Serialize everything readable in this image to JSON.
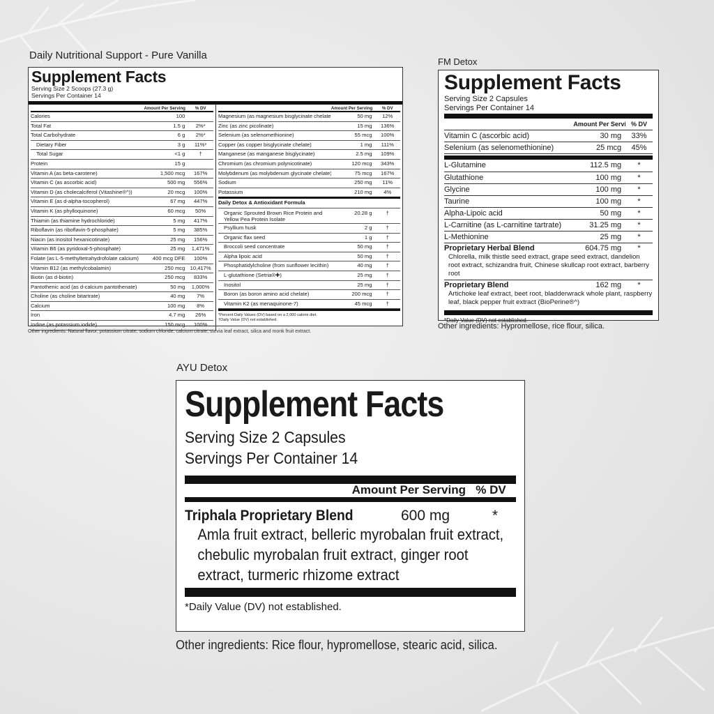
{
  "panels": {
    "daily": {
      "label": "Daily Nutritional Support - Pure Vanilla",
      "title": "Supplement Facts",
      "serving_size": "Serving Size 2 Scoops (27.3 g)",
      "servings_per_container": "Servings Per Container 14",
      "header_amount": "Amount Per Serving",
      "header_dv": "% DV",
      "left_rows": [
        {
          "name": "Calories",
          "amount": "100",
          "dv": ""
        },
        {
          "name": "Total Fat",
          "amount": "1.5 g",
          "dv": "2%*"
        },
        {
          "name": "Total Carbohydrate",
          "amount": "6 g",
          "dv": "2%*"
        },
        {
          "name": "Dietary Fiber",
          "amount": "3 g",
          "dv": "11%*",
          "indent": true
        },
        {
          "name": "Total Sugar",
          "amount": "<1 g",
          "dv": "†",
          "indent": true
        },
        {
          "name": "Protein",
          "amount": "15 g",
          "dv": ""
        },
        {
          "name": "Vitamin A (as beta-carotene)",
          "amount": "1,500 mcg",
          "dv": "167%"
        },
        {
          "name": "Vitamin C (as ascorbic acid)",
          "amount": "500 mg",
          "dv": "556%"
        },
        {
          "name": "Vitamin D (as cholecalciferol (Vitashine®^))",
          "amount": "20 mcg",
          "dv": "100%"
        },
        {
          "name": "Vitamin E (as d-alpha-tocopherol)",
          "amount": "67 mg",
          "dv": "447%"
        },
        {
          "name": "Vitamin K (as phylloquinone)",
          "amount": "60 mcg",
          "dv": "50%"
        },
        {
          "name": "Thiamin (as thiamine hydrochloride)",
          "amount": "5 mg",
          "dv": "417%"
        },
        {
          "name": "Riboflavin (as riboflavin-5-phosphate)",
          "amount": "5 mg",
          "dv": "385%"
        },
        {
          "name": "Niacin (as inositol hexanicotinate)",
          "amount": "25 mg",
          "dv": "156%"
        },
        {
          "name": "Vitamin B6 (as pyridoxal-5-phosphate)",
          "amount": "25 mg",
          "dv": "1,471%"
        },
        {
          "name": "Folate (as L-5-methyltetrahydrofolate calcium)",
          "amount": "400 mcg DFE",
          "dv": "100%"
        },
        {
          "name": "Vitamin B12 (as methylcobalamin)",
          "amount": "250 mcg",
          "dv": "10,417%"
        },
        {
          "name": "Biotin (as d-biotin)",
          "amount": "250 mcg",
          "dv": "833%"
        },
        {
          "name": "Pantothenic acid (as d-calcium pantothenate)",
          "amount": "50 mg",
          "dv": "1,000%"
        },
        {
          "name": "Choline (as choline bitartrate)",
          "amount": "40 mg",
          "dv": "7%"
        },
        {
          "name": "Calcium",
          "amount": "100 mg",
          "dv": "8%"
        },
        {
          "name": "Iron",
          "amount": "4.7 mg",
          "dv": "26%"
        },
        {
          "name": "Iodine (as potassium iodide)",
          "amount": "150 mcg",
          "dv": "100%"
        }
      ],
      "right_rows": [
        {
          "name": "Magnesium (as magnesium bisglycinate chelate)",
          "amount": "50 mg",
          "dv": "12%"
        },
        {
          "name": "Zinc (as zinc picolinate)",
          "amount": "15 mg",
          "dv": "136%"
        },
        {
          "name": "Selenium (as selenomethionine)",
          "amount": "55 mcg",
          "dv": "100%"
        },
        {
          "name": "Copper (as copper bisglycinate chelate)",
          "amount": "1 mg",
          "dv": "111%"
        },
        {
          "name": "Manganese (as manganese bisglycinate)",
          "amount": "2.5 mg",
          "dv": "109%"
        },
        {
          "name": "Chromium (as chromium polynicotinate)",
          "amount": "120 mcg",
          "dv": "343%"
        },
        {
          "name": "Molybdenum (as molybdenum glycinate chelate)",
          "amount": "75 mcg",
          "dv": "167%"
        },
        {
          "name": "Sodium",
          "amount": "250 mg",
          "dv": "11%"
        },
        {
          "name": "Potassium",
          "amount": "210 mg",
          "dv": "4%"
        }
      ],
      "formula_title": "Daily Detox & Antioxidant Formula",
      "formula_rows": [
        {
          "name": "Organic Sprouted Brown Rice Protein and Yellow Pea Protein Isolate",
          "amount": "20.28 g",
          "dv": "†"
        },
        {
          "name": "Psyllium husk",
          "amount": "2 g",
          "dv": "†"
        },
        {
          "name": "Organic flax seed",
          "amount": "1 g",
          "dv": "†"
        },
        {
          "name": "Broccoli seed concentrate",
          "amount": "50 mg",
          "dv": "†"
        },
        {
          "name": "Alpha lipoic acid",
          "amount": "50 mg",
          "dv": "†"
        },
        {
          "name": "Phosphatidylcholine (from sunflower lecithin)",
          "amount": "40 mg",
          "dv": "†"
        },
        {
          "name": "L-glutathione (Setria®✚)",
          "amount": "25 mg",
          "dv": "†"
        },
        {
          "name": "Inositol",
          "amount": "25 mg",
          "dv": "†"
        },
        {
          "name": "Boron (as boron amino acid chelate)",
          "amount": "200 mcg",
          "dv": "†"
        },
        {
          "name": "Vitamin K2 (as menaquinone-7)",
          "amount": "45 mcg",
          "dv": "†"
        }
      ],
      "footnote_1": "*Percent Daily Values (DV) based on a 2,000 calorie diet.",
      "footnote_2": "†Daily Value (DV) not established.",
      "other_ingredients": "Other ingredients: Natural flavor, potassium citrate, sodium chloride, calcium citrate, stevia leaf extract, silica and monk fruit extract."
    },
    "fm": {
      "label": "FM Detox",
      "title": "Supplement Facts",
      "serving_size": "Serving Size 2 Capsules",
      "servings_per_container": "Servings Per Container 14",
      "header_amount": "Amount Per Serving",
      "header_dv": "% DV",
      "rows_a": [
        {
          "name": "Vitamin C (ascorbic acid)",
          "amount": "30 mg",
          "dv": "33%"
        },
        {
          "name": "Selenium (as selenomethionine)",
          "amount": "25 mcg",
          "dv": "45%"
        }
      ],
      "rows_b": [
        {
          "name": "L-Glutamine",
          "amount": "112.5 mg",
          "dv": "*"
        },
        {
          "name": "Glutathione",
          "amount": "100 mg",
          "dv": "*"
        },
        {
          "name": "Glycine",
          "amount": "100 mg",
          "dv": "*"
        },
        {
          "name": "Taurine",
          "amount": "100 mg",
          "dv": "*"
        },
        {
          "name": "Alpha-Lipoic acid",
          "amount": "50 mg",
          "dv": "*"
        },
        {
          "name": "L-Carnitine (as L-carnitine tartrate)",
          "amount": "31.25 mg",
          "dv": "*"
        },
        {
          "name": "L-Methionine",
          "amount": "25 mg",
          "dv": "*"
        }
      ],
      "blends": [
        {
          "name": "Proprietary Herbal Blend",
          "amount": "604.75 mg",
          "dv": "*",
          "desc": "Chlorella, milk thistle seed extract, grape seed extract, dandelion root extract, schizandra fruit, Chinese skullcap root extract, barberry root"
        },
        {
          "name": "Proprietary Blend",
          "amount": "162 mg",
          "dv": "*",
          "desc": "Artichoke leaf extract, beet root, bladderwrack whole plant, raspberry leaf, black pepper fruit extract (BioPerine®^)"
        }
      ],
      "footnote": "*Daily Value (DV) not established.",
      "other_ingredients": "Other ingredients: Hypromellose, rice flour, silica."
    },
    "ayu": {
      "label": "AYU Detox",
      "title": "Supplement Facts",
      "serving_size": "Serving Size 2 Capsules",
      "servings_per_container": "Servings Per Container 14",
      "header_amount": "Amount Per Serving",
      "header_dv": "% DV",
      "blend_name": "Triphala Proprietary Blend",
      "blend_amount": "600 mg",
      "blend_dv": "*",
      "blend_desc": "Amla fruit extract, belleric myrobalan fruit extract, chebulic myrobalan fruit extract, ginger root extract, turmeric rhizome extract",
      "footnote": "*Daily Value (DV) not established.",
      "other_ingredients": "Other ingredients: Rice flour, hypromellose, stearic acid, silica."
    }
  }
}
